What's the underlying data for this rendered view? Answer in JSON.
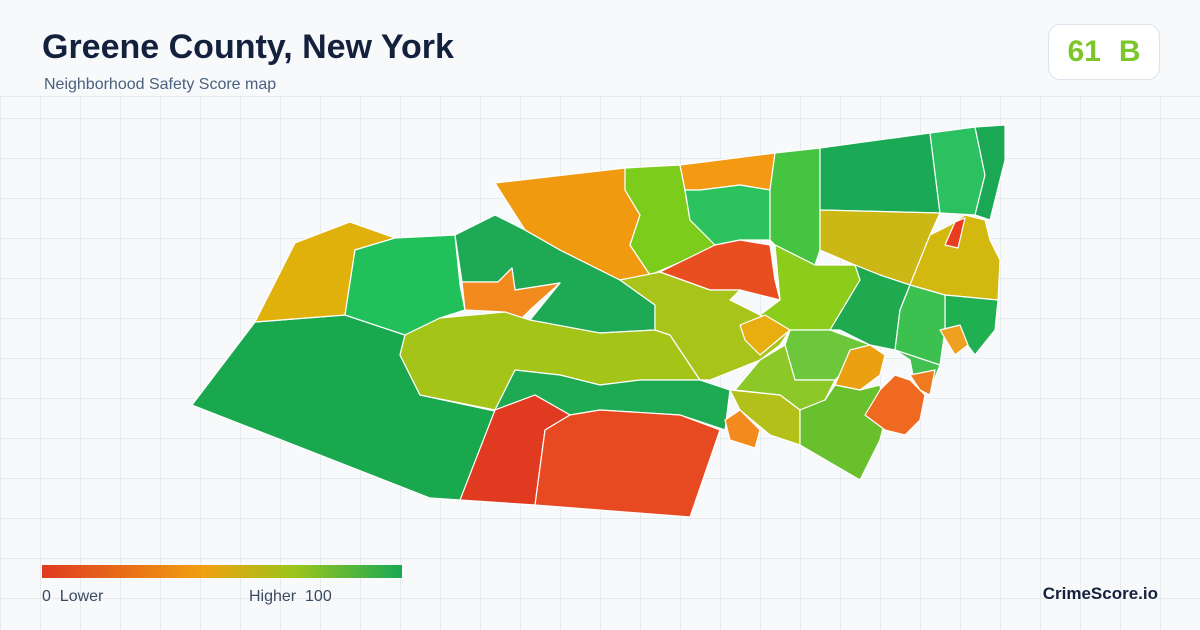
{
  "header": {
    "title": "Greene County, New York",
    "subtitle": "Neighborhood Safety Score map"
  },
  "score": {
    "value": 61,
    "grade": "B"
  },
  "legend": {
    "min": 0,
    "min_label": "Lower",
    "max_label": "Higher",
    "max": 100
  },
  "brand": "CrimeScore.io"
}
